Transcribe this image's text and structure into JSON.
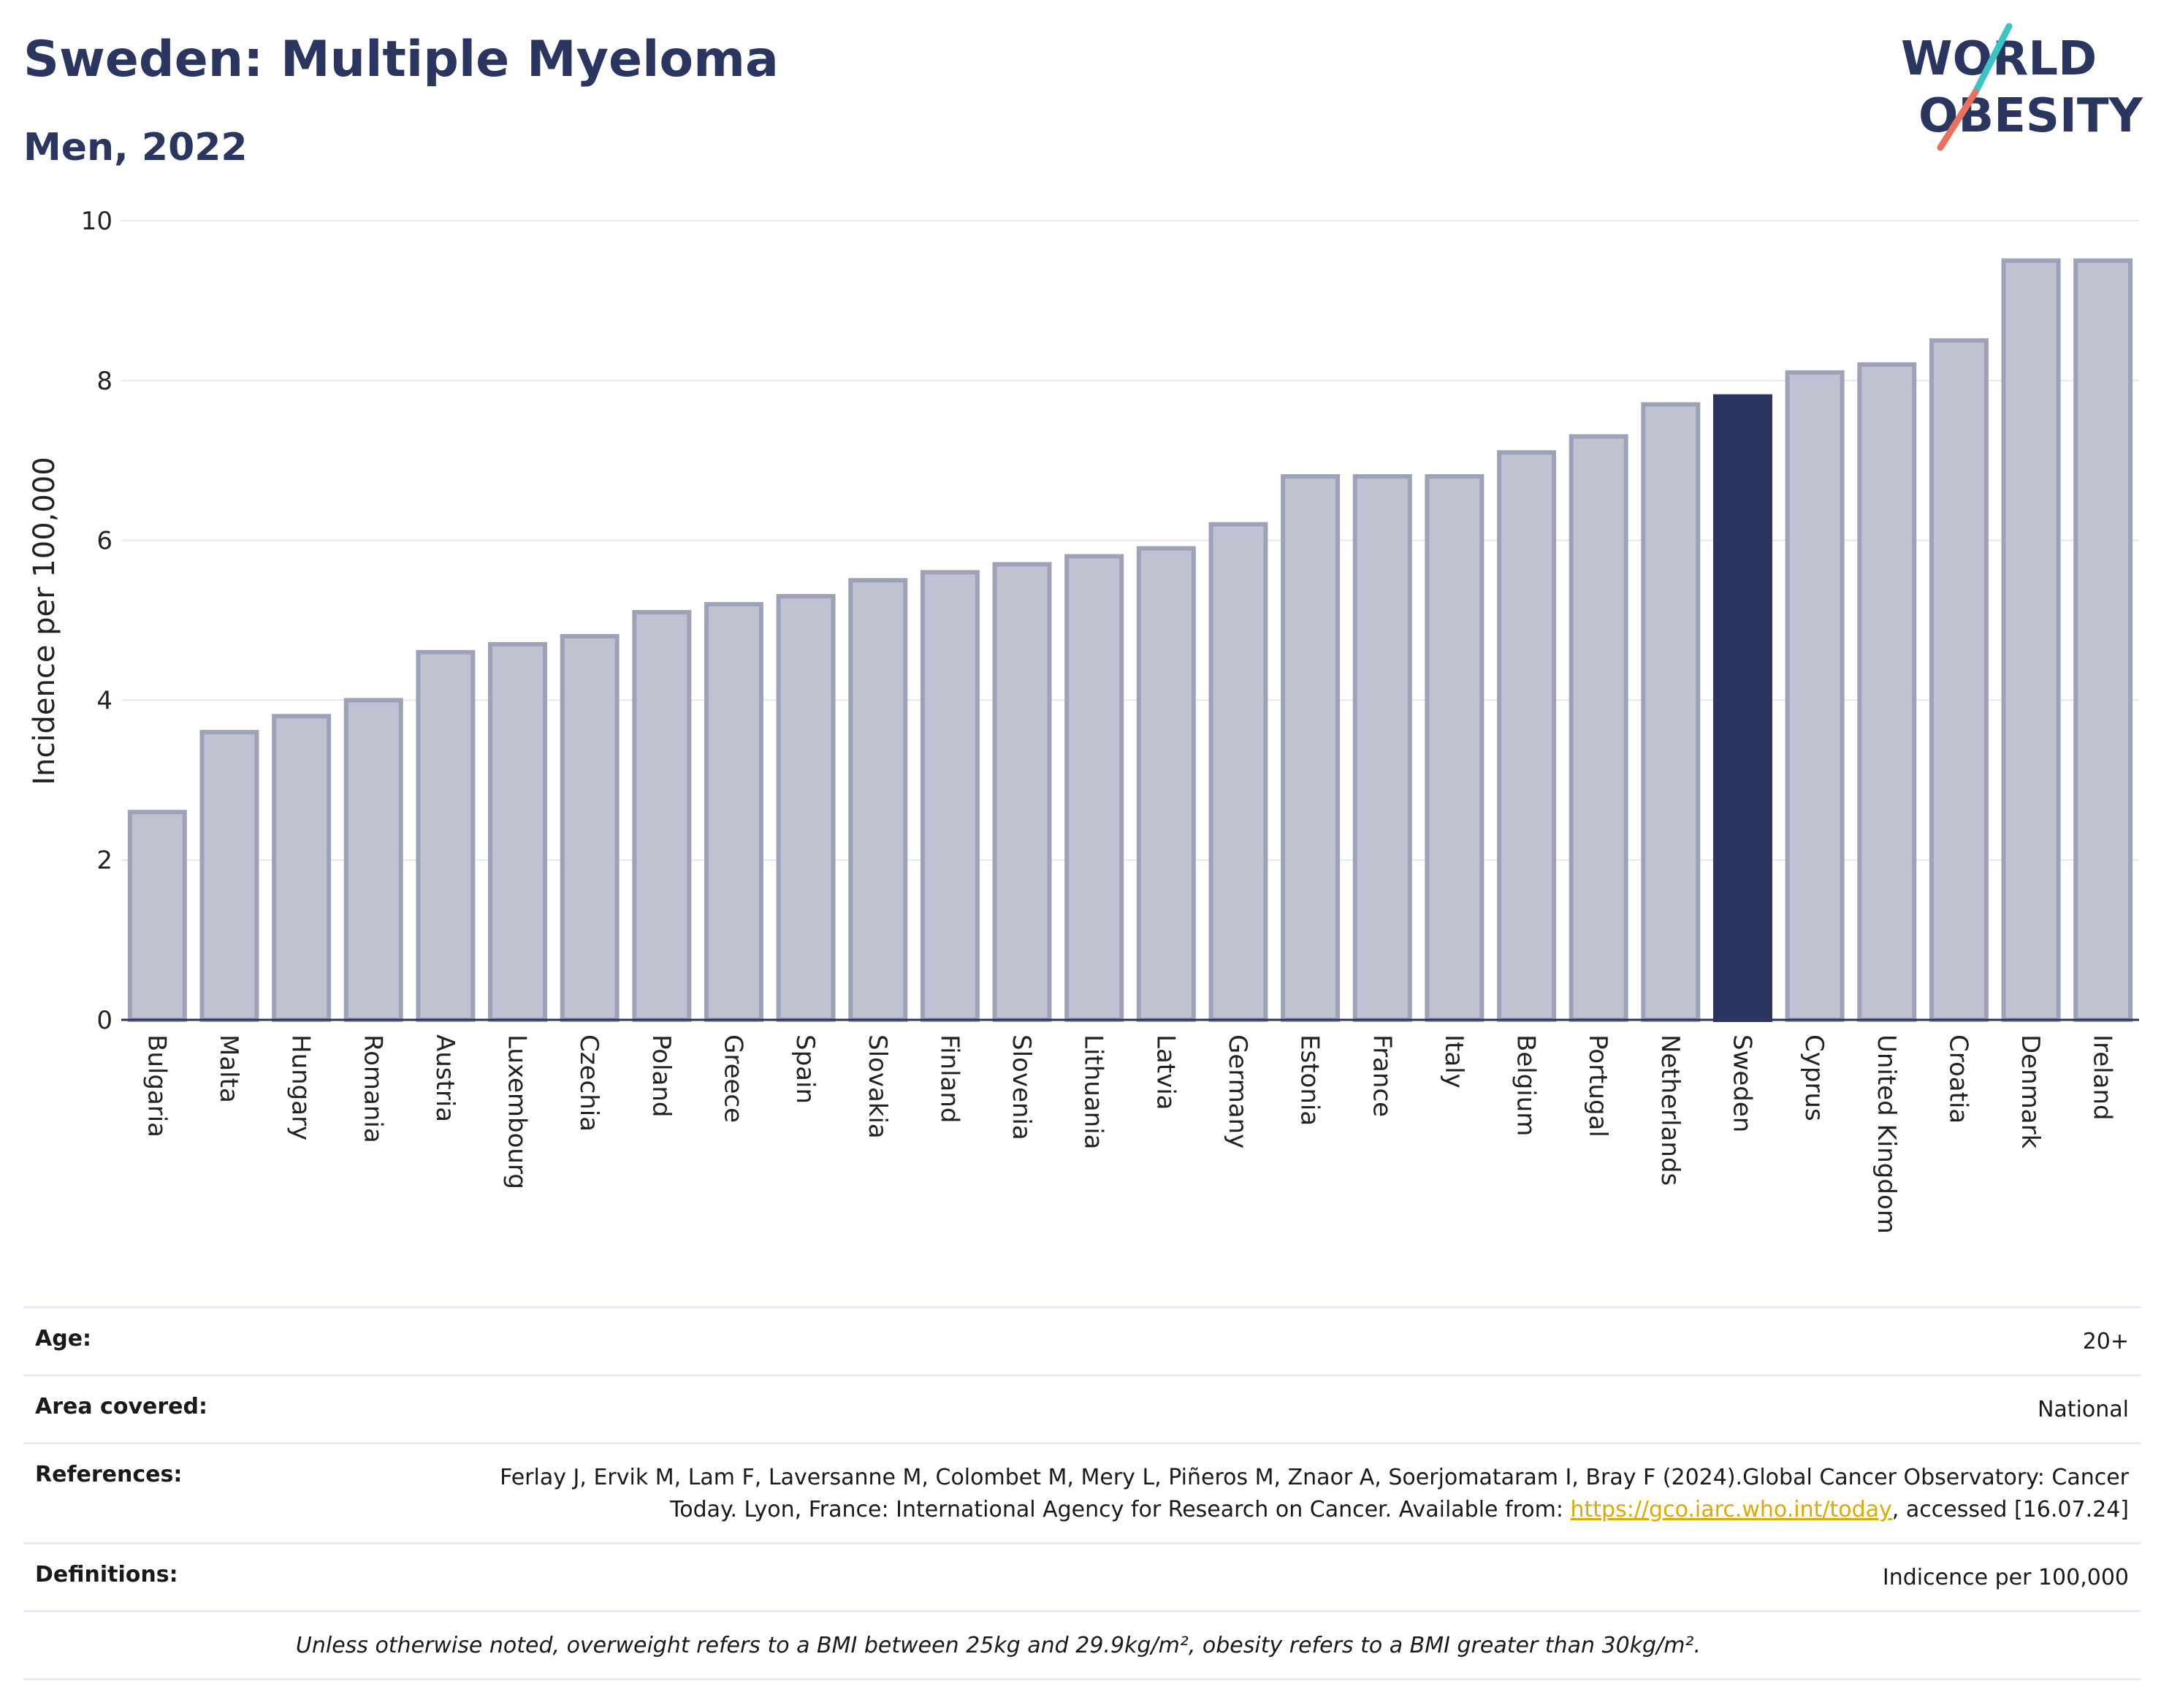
{
  "header": {
    "title": "Sweden: Multiple Myeloma",
    "subtitle": "Men, 2022",
    "logo_line1": "WORLD",
    "logo_line2": "OBESITY"
  },
  "colors": {
    "bar": "#bfc2d0",
    "bar_border": "#9da2b8",
    "highlight": "#2a3560",
    "grid": "#e6e8ee",
    "logo_text": "#2a3560",
    "logo_slash_teal": "#3cc4c4",
    "logo_slash_coral": "#e8715f",
    "link": "#e0a800"
  },
  "chart_data": {
    "type": "bar",
    "title": "Sweden: Multiple Myeloma",
    "subtitle": "Men, 2022",
    "xlabel": "",
    "ylabel": "Incidence per 100,000",
    "ylim": [
      0,
      10
    ],
    "yticks": [
      0,
      2,
      4,
      6,
      8,
      10
    ],
    "grid": true,
    "highlight": "Sweden",
    "categories": [
      "Bulgaria",
      "Malta",
      "Hungary",
      "Romania",
      "Austria",
      "Luxembourg",
      "Czechia",
      "Poland",
      "Greece",
      "Spain",
      "Slovakia",
      "Finland",
      "Slovenia",
      "Lithuania",
      "Latvia",
      "Germany",
      "Estonia",
      "France",
      "Italy",
      "Belgium",
      "Portugal",
      "Netherlands",
      "Sweden",
      "Cyprus",
      "United Kingdom",
      "Croatia",
      "Denmark",
      "Ireland"
    ],
    "values": [
      2.6,
      3.6,
      3.8,
      4.0,
      4.6,
      4.7,
      4.8,
      5.1,
      5.2,
      5.3,
      5.5,
      5.6,
      5.7,
      5.8,
      5.9,
      6.2,
      6.8,
      6.8,
      6.8,
      7.1,
      7.3,
      7.7,
      7.8,
      8.1,
      8.2,
      8.5,
      9.5,
      9.5
    ]
  },
  "meta": {
    "age_label": "Age:",
    "age_value": "20+",
    "area_label": "Area covered:",
    "area_value": "National",
    "references_label": "References:",
    "references_text": "Ferlay J, Ervik M, Lam F, Laversanne M, Colombet M, Mery L, Piñeros M, Znaor A, Soerjomataram I, Bray F (2024).Global Cancer Observatory: Cancer Today. Lyon, France: International Agency for Research on Cancer. Available from: ",
    "references_link": "https://gco.iarc.who.int/today",
    "references_tail": ", accessed [16.07.24]",
    "definitions_label": "Definitions:",
    "definitions_value": "Indicence per 100,000",
    "note": "Unless otherwise noted, overweight refers to a BMI between 25kg and 29.9kg/m², obesity refers to a BMI greater than 30kg/m²."
  }
}
